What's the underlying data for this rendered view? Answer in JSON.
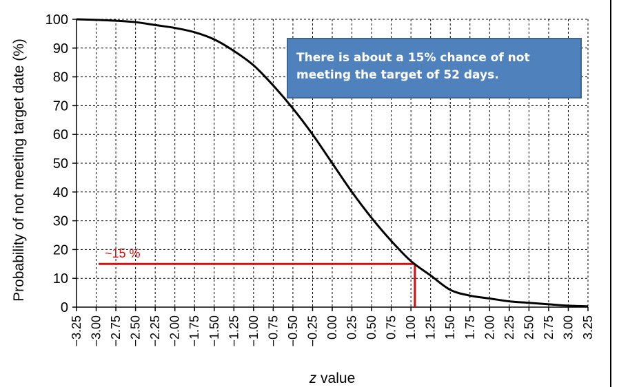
{
  "colors": {
    "curve": "#000000",
    "grid": "#000000",
    "highlight": "#cc1111",
    "callout_bg": "#4f81bd",
    "callout_text": "#ffffff"
  },
  "chart_data": {
    "type": "line",
    "xlabel_prefix": "z",
    "xlabel_suffix": " value",
    "ylabel": "Probability of not meeting target date (%)",
    "xlim": [
      -3.25,
      3.25
    ],
    "ylim": [
      0,
      100
    ],
    "x_ticks": [
      "−3.25",
      "−3.00",
      "−2.75",
      "−2.50",
      "−2.25",
      "−2.00",
      "−1.75",
      "−1.50",
      "−1.25",
      "−1.00",
      "−0.75",
      "−0.50",
      "−0.25",
      "0.00",
      "0.25",
      "0.50",
      "0.75",
      "1.00",
      "1.25",
      "1.50",
      "1.75",
      "2.00",
      "2.25",
      "2.50",
      "2.75",
      "3.00",
      "3.25"
    ],
    "y_ticks": [
      "0",
      "10",
      "20",
      "30",
      "40",
      "50",
      "60",
      "70",
      "80",
      "90",
      "100"
    ],
    "grid": true,
    "series": [
      {
        "x": [
          -3.25,
          -3.0,
          -2.75,
          -2.5,
          -2.25,
          -2.0,
          -1.75,
          -1.5,
          -1.25,
          -1.0,
          -0.75,
          -0.5,
          -0.25,
          0.0,
          0.25,
          0.5,
          0.75,
          1.0,
          1.25,
          1.5,
          1.75,
          2.0,
          2.25,
          2.5,
          2.75,
          3.0,
          3.25
        ],
        "y": [
          100,
          99.8,
          99.5,
          99,
          98,
          97,
          95.5,
          93,
          89,
          84,
          77,
          69,
          60,
          50,
          40,
          31,
          23,
          16,
          11,
          6,
          4,
          3,
          2,
          1.5,
          1,
          0.5,
          0.3
        ]
      }
    ],
    "annotation": {
      "label": "~15 %",
      "x": 1.05,
      "y": 15,
      "callout": "There is about a 15% chance of not meeting the target of 52 days."
    }
  }
}
